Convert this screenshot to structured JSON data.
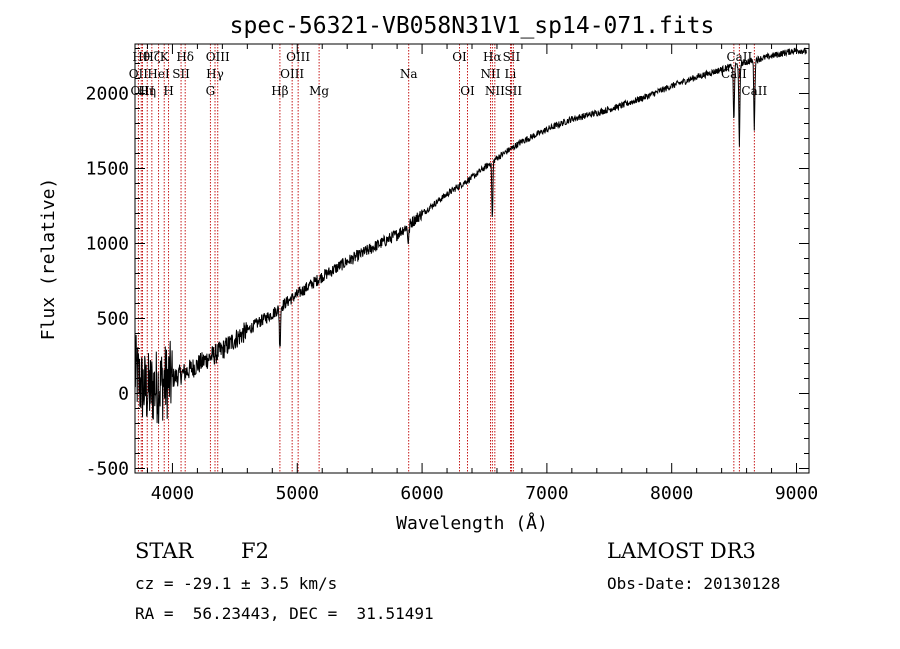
{
  "chart_data": {
    "type": "line",
    "title": "spec-56321-VB058N31V1_sp14-071.fits",
    "xlabel": "Wavelength (Å)",
    "ylabel": "Flux (relative)",
    "xlim": [
      3700,
      9100
    ],
    "ylim": [
      -530,
      2330
    ],
    "x_ticks": [
      4000,
      5000,
      6000,
      7000,
      8000,
      9000
    ],
    "y_ticks": [
      -500,
      0,
      500,
      1000,
      1500,
      2000
    ],
    "spectrum_anchors": [
      [
        3700,
        150
      ],
      [
        3750,
        50
      ],
      [
        3800,
        20
      ],
      [
        3850,
        40
      ],
      [
        3900,
        60
      ],
      [
        3950,
        80
      ],
      [
        4000,
        100
      ],
      [
        4100,
        140
      ],
      [
        4200,
        190
      ],
      [
        4300,
        240
      ],
      [
        4400,
        290
      ],
      [
        4500,
        360
      ],
      [
        4600,
        420
      ],
      [
        4700,
        480
      ],
      [
        4800,
        530
      ],
      [
        4900,
        600
      ],
      [
        5000,
        660
      ],
      [
        5200,
        780
      ],
      [
        5400,
        880
      ],
      [
        5600,
        970
      ],
      [
        5800,
        1060
      ],
      [
        6000,
        1200
      ],
      [
        6200,
        1330
      ],
      [
        6400,
        1440
      ],
      [
        6600,
        1570
      ],
      [
        6800,
        1680
      ],
      [
        7000,
        1760
      ],
      [
        7200,
        1830
      ],
      [
        7400,
        1870
      ],
      [
        7600,
        1920
      ],
      [
        7800,
        1980
      ],
      [
        8000,
        2050
      ],
      [
        8200,
        2110
      ],
      [
        8400,
        2160
      ],
      [
        8600,
        2210
      ],
      [
        8800,
        2250
      ],
      [
        8900,
        2270
      ],
      [
        9000,
        2290
      ],
      [
        9080,
        2280
      ]
    ],
    "absorption_features": [
      {
        "x": 4861,
        "depth": 280,
        "width": 6
      },
      {
        "x": 5890,
        "depth": 110,
        "width": 8
      },
      {
        "x": 6563,
        "depth": 380,
        "width": 6
      },
      {
        "x": 8498,
        "depth": 380,
        "width": 6
      },
      {
        "x": 8542,
        "depth": 560,
        "width": 6
      },
      {
        "x": 8662,
        "depth": 460,
        "width": 6
      }
    ],
    "spectral_lines": [
      {
        "x": 3750,
        "row": 1,
        "label": "Hθ"
      },
      {
        "x": 3727,
        "row": 2,
        "label": "OII"
      },
      {
        "x": 3760,
        "row": 3,
        "label": "OIII"
      },
      {
        "x": 3798,
        "row": 3,
        "label": "Hη"
      },
      {
        "x": 3835,
        "row": 1,
        "label": "Hζ"
      },
      {
        "x": 3889,
        "row": 2,
        "label": "HeI"
      },
      {
        "x": 3934,
        "row": 1,
        "label": "K"
      },
      {
        "x": 3969,
        "row": 3,
        "label": "H"
      },
      {
        "x": 4069,
        "row": 2,
        "label": "SII"
      },
      {
        "x": 4102,
        "row": 1,
        "label": "Hδ"
      },
      {
        "x": 4304,
        "row": 3,
        "label": "G"
      },
      {
        "x": 4341,
        "row": 2,
        "label": "Hγ"
      },
      {
        "x": 4363,
        "row": 1,
        "label": "OIII"
      },
      {
        "x": 4861,
        "row": 3,
        "label": "Hβ"
      },
      {
        "x": 4959,
        "row": 2,
        "label": "OIII"
      },
      {
        "x": 5007,
        "row": 1,
        "label": "OIII"
      },
      {
        "x": 5175,
        "row": 3,
        "label": "Mg"
      },
      {
        "x": 5893,
        "row": 2,
        "label": "Na"
      },
      {
        "x": 6300,
        "row": 1,
        "label": "OI"
      },
      {
        "x": 6364,
        "row": 3,
        "label": "OI"
      },
      {
        "x": 6548,
        "row": 2,
        "label": "NII"
      },
      {
        "x": 6563,
        "row": 1,
        "label": "Hα"
      },
      {
        "x": 6583,
        "row": 3,
        "label": "NII"
      },
      {
        "x": 6708,
        "row": 2,
        "label": "Li"
      },
      {
        "x": 6716,
        "row": 1,
        "label": "SII"
      },
      {
        "x": 6731,
        "row": 3,
        "label": "SII"
      },
      {
        "x": 8498,
        "row": 2,
        "label": "CaII"
      },
      {
        "x": 8542,
        "row": 1,
        "label": "CaII"
      },
      {
        "x": 8662,
        "row": 3,
        "label": "CaII"
      }
    ],
    "colors": {
      "spectrum": "#000000",
      "lines": "#c00000",
      "axes": "#000000"
    }
  },
  "info": {
    "object_class": "STAR",
    "subclass": "F2",
    "survey": "LAMOST DR3",
    "velocity": "cz = -29.1 ± 3.5 km/s",
    "obs_date": "Obs-Date: 20130128",
    "coords": "RA =  56.23443, DEC =  31.51491"
  }
}
